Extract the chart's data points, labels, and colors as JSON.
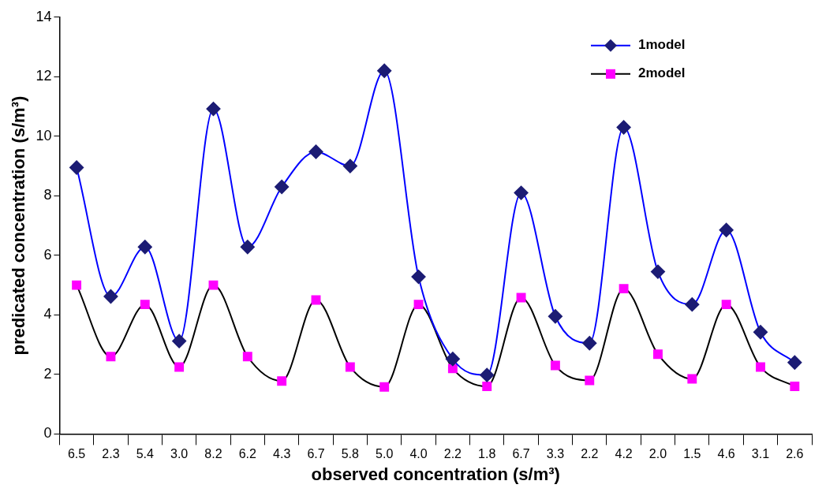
{
  "chart_data": {
    "type": "line",
    "xlabel": "observed concentration (s/m³)",
    "ylabel": "predicated concentration (s/m³)",
    "categories": [
      "6.5",
      "2.3",
      "5.4",
      "3.0",
      "8.2",
      "6.2",
      "4.3",
      "6.7",
      "5.8",
      "5.0",
      "4.0",
      "2.2",
      "1.8",
      "6.7",
      "3.3",
      "2.2",
      "4.2",
      "2.0",
      "1.5",
      "4.6",
      "3.1",
      "2.6"
    ],
    "ylim": [
      0,
      14
    ],
    "yticks": [
      0,
      2,
      4,
      6,
      8,
      10,
      12,
      14
    ],
    "grid": false,
    "legend": "top right",
    "series": [
      {
        "name": "1model",
        "color": "#0000ff",
        "marker": "diamond",
        "colors": [
          "#1c1c74",
          "#1c1c74",
          "#1c1c74",
          "#1c1c74",
          "#1c1c74",
          "#1c1c74",
          "#1c1c74",
          "#1c1c74",
          "#1c1c74",
          "#1c1c74",
          "#1c1c74",
          "#1c1c74",
          "#1c1c74",
          "#1c1c74",
          "#1c1c74",
          "#1c1c74",
          "#1c1c74",
          "#1c1c74",
          "#1c1c74",
          "#1c1c74",
          "#1c1c74",
          "#1c1c74"
        ],
        "values": [
          8.95,
          4.62,
          6.28,
          3.12,
          10.92,
          6.28,
          8.3,
          9.48,
          9.0,
          12.2,
          5.28,
          2.52,
          1.98,
          8.1,
          3.95,
          3.05,
          10.3,
          5.45,
          4.35,
          6.85,
          3.42,
          2.4
        ]
      },
      {
        "name": "2model",
        "color": "#000000",
        "marker": "square",
        "colors": [
          "#ff00ff",
          "#ff00ff",
          "#ff00ff",
          "#ff00ff",
          "#ff00ff",
          "#ff00ff",
          "#ff00ff",
          "#ff00ff",
          "#ff00ff",
          "#ff00ff",
          "#ff00ff",
          "#ff00ff",
          "#ff00ff",
          "#ff00ff",
          "#ff00ff",
          "#ff00ff",
          "#ff00ff",
          "#ff00ff",
          "#ff00ff",
          "#ff00ff",
          "#ff00ff",
          "#ff00ff"
        ],
        "values": [
          5.0,
          2.6,
          4.35,
          2.25,
          5.0,
          2.6,
          1.78,
          4.5,
          2.25,
          1.58,
          4.35,
          2.2,
          1.6,
          4.58,
          2.3,
          1.8,
          4.88,
          2.68,
          1.85,
          4.35,
          2.25,
          1.6
        ]
      }
    ]
  }
}
